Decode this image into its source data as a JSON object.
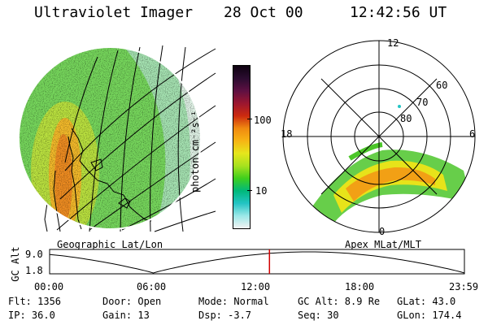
{
  "header": {
    "instrument": "Ultraviolet Imager",
    "date": "28 Oct 00",
    "time": "12:42:56 UT"
  },
  "colorbar": {
    "unit_label": "photon cm⁻²s⁻¹",
    "ticks": [
      "100",
      "10"
    ],
    "colors": [
      "#f3f3f3",
      "#9be8e8",
      "#23c4c4",
      "#00b87a",
      "#3fcf1d",
      "#a8e21e",
      "#e6e61c",
      "#f7b414",
      "#f08a10",
      "#cc2a0f",
      "#9b1630",
      "#5e1042",
      "#2b0c30",
      "#0d0210"
    ]
  },
  "left_panel": {
    "label": "Geographic Lat/Lon"
  },
  "right_panel": {
    "label": "Apex MLat/MLT",
    "lat_labels": [
      "80",
      "70",
      "60"
    ],
    "mlt_labels": [
      "12",
      "18",
      "6",
      "0"
    ]
  },
  "timeline": {
    "ylabel": "GC Alt",
    "yticks": [
      "9.0",
      "1.8"
    ],
    "xticks": [
      "00:00",
      "06:00",
      "12:00",
      "18:00",
      "23:59"
    ],
    "current_marker_hours": 12.72
  },
  "info": {
    "flt": "Flt: 1356",
    "ip": "IP: 36.0",
    "door": "Door: Open",
    "gain": "Gain: 13",
    "mode": "Mode: Normal",
    "dsp": "Dsp:    -3.7",
    "gcalt": "GC Alt: 8.9 Re",
    "seq": "Seq: 30",
    "glat": "GLat:  43.0",
    "glon": "GLon: 174.4"
  }
}
